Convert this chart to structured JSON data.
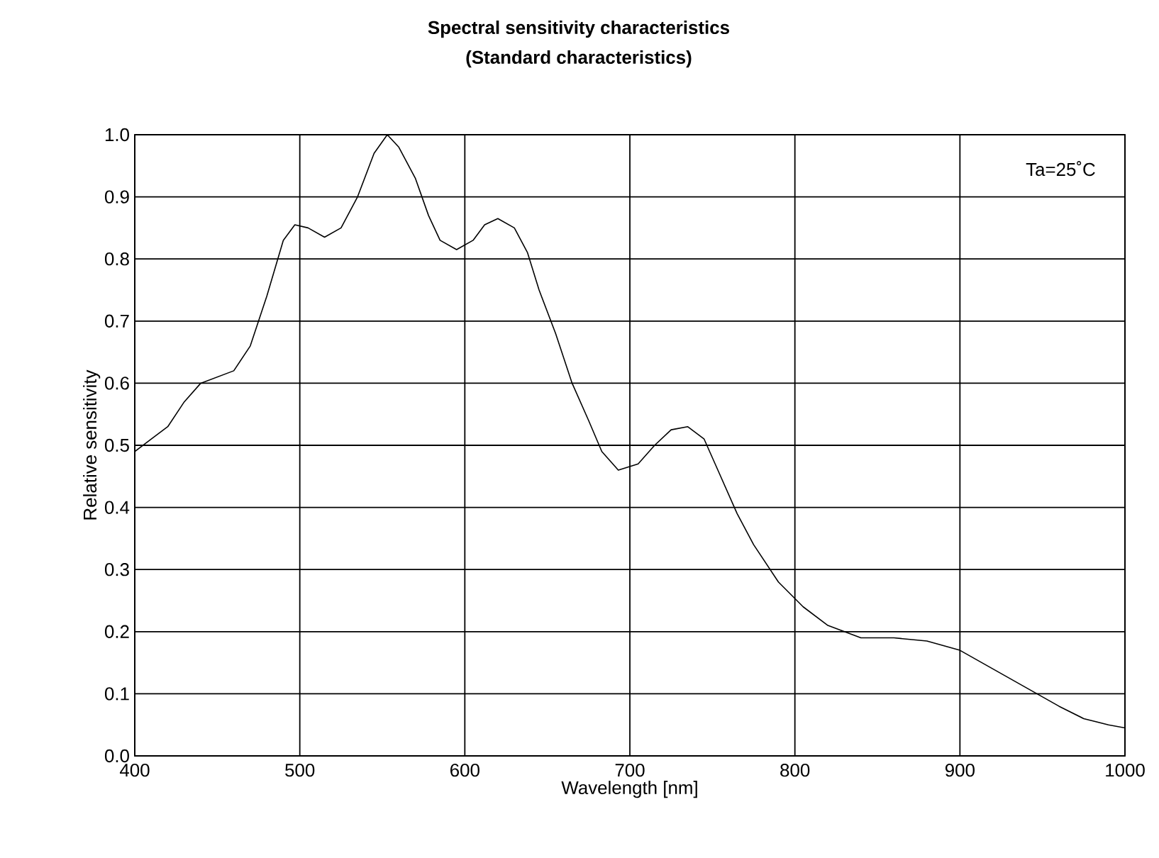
{
  "chart_data": {
    "type": "line",
    "title": "Spectral sensitivity characteristics",
    "subtitle": "(Standard characteristics)",
    "xlabel": "Wavelength [nm]",
    "ylabel": "Relative sensitivity",
    "annotations": [
      "Ta=25˚C"
    ],
    "x": [
      400,
      410,
      420,
      430,
      440,
      450,
      460,
      470,
      480,
      490,
      497,
      505,
      515,
      525,
      535,
      545,
      553,
      560,
      570,
      578,
      585,
      595,
      605,
      612,
      620,
      630,
      638,
      645,
      655,
      665,
      675,
      683,
      693,
      705,
      715,
      725,
      735,
      745,
      755,
      765,
      775,
      790,
      805,
      820,
      840,
      860,
      880,
      900,
      920,
      940,
      960,
      975,
      990,
      1000
    ],
    "series": [
      {
        "color": "#000000",
        "values": [
          0.49,
          0.51,
          0.53,
          0.57,
          0.6,
          0.61,
          0.62,
          0.66,
          0.74,
          0.83,
          0.855,
          0.85,
          0.835,
          0.85,
          0.9,
          0.97,
          1.0,
          0.98,
          0.93,
          0.87,
          0.83,
          0.815,
          0.83,
          0.855,
          0.865,
          0.85,
          0.81,
          0.75,
          0.68,
          0.6,
          0.54,
          0.49,
          0.46,
          0.47,
          0.5,
          0.525,
          0.53,
          0.51,
          0.45,
          0.39,
          0.34,
          0.28,
          0.24,
          0.21,
          0.19,
          0.19,
          0.185,
          0.17,
          0.14,
          0.11,
          0.08,
          0.06,
          0.05,
          0.045
        ]
      }
    ],
    "xlim": [
      400,
      1000
    ],
    "xticks": [
      400,
      500,
      600,
      700,
      800,
      900,
      1000
    ],
    "ylim": [
      0,
      1
    ],
    "yticks": [
      {
        "value": 0,
        "label": "0.0"
      },
      0.1,
      0.2,
      0.3,
      0.4,
      0.5,
      0.6,
      0.7,
      0.8,
      0.9,
      {
        "value": 1,
        "label": "1.0"
      }
    ],
    "grid": true,
    "marker": "none",
    "line_style": "solid"
  }
}
